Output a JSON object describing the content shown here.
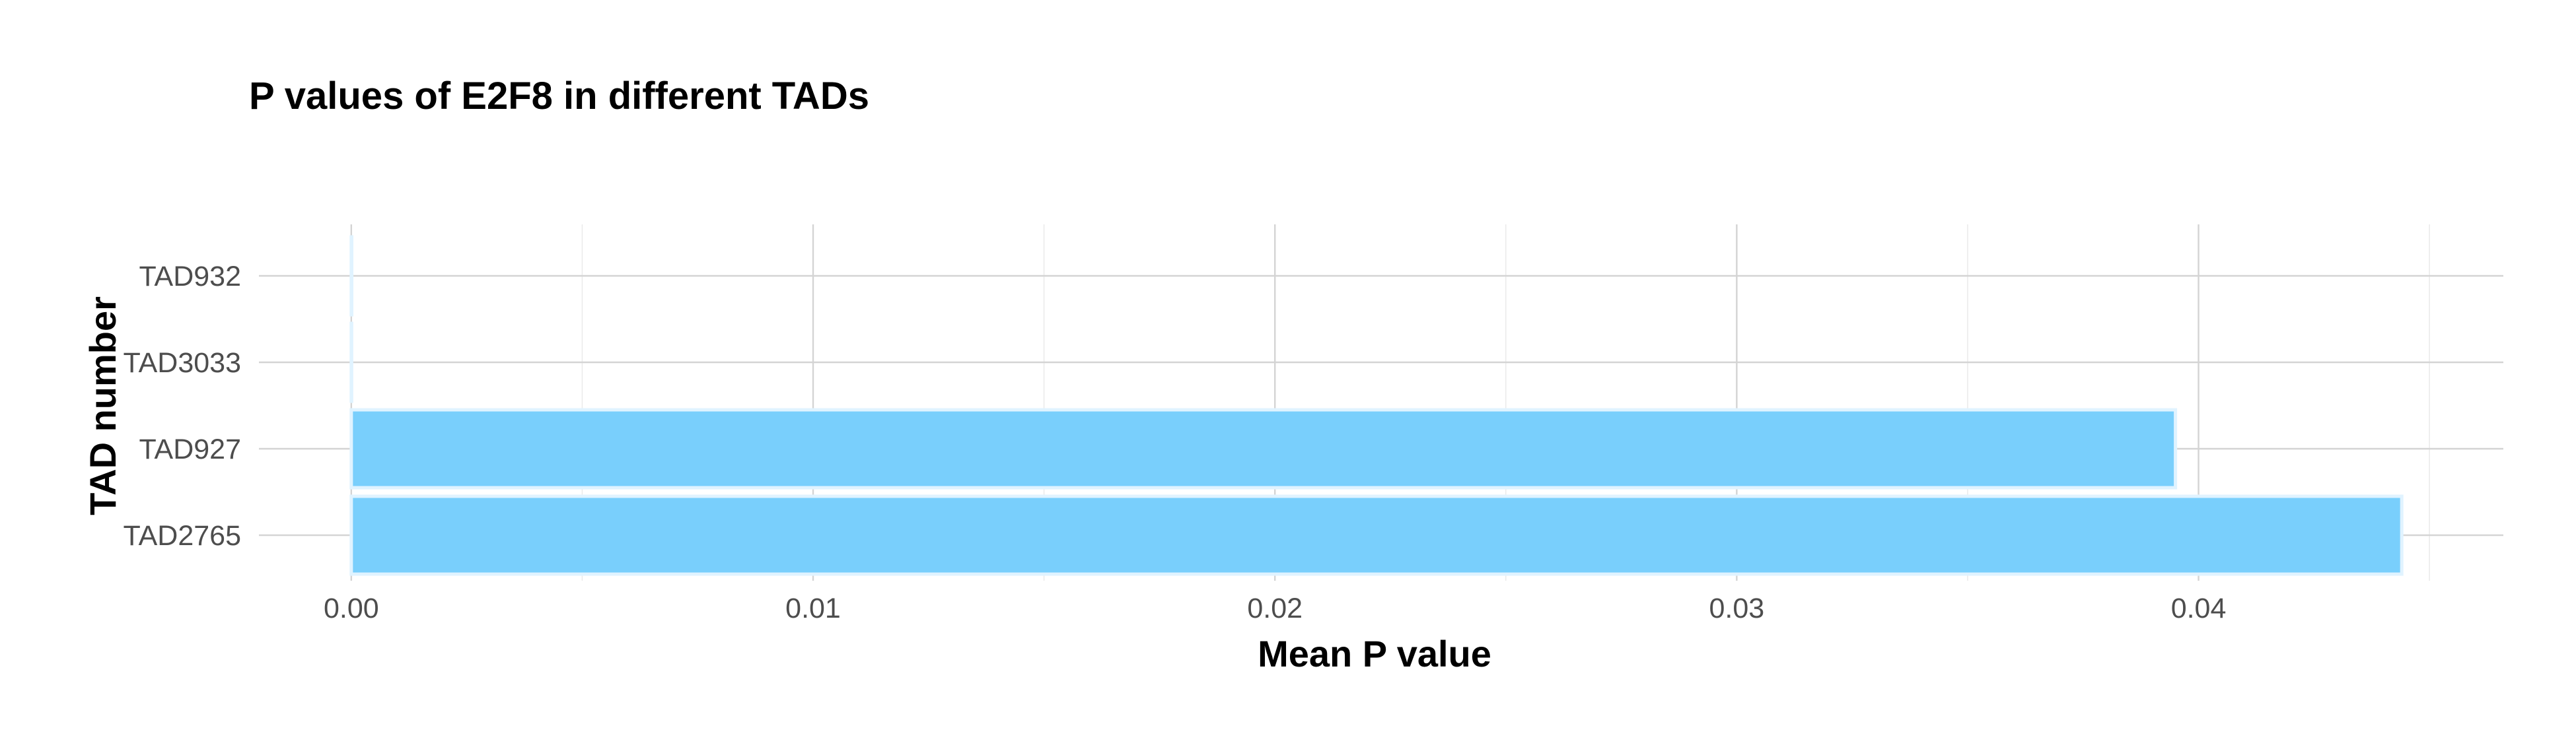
{
  "chart_data": {
    "type": "bar",
    "orientation": "horizontal",
    "title": "P values of E2F8 in different TADs",
    "xlabel": "Mean P value",
    "ylabel": "TAD number",
    "categories": [
      "TAD932",
      "TAD3033",
      "TAD927",
      "TAD2765"
    ],
    "values": [
      1e-05,
      0.0,
      0.0395,
      0.0444
    ],
    "xlim": [
      -0.002,
      0.0466
    ],
    "x_ticks": [
      0.0,
      0.01,
      0.02,
      0.03,
      0.04
    ],
    "x_tick_labels": [
      "0.00",
      "0.01",
      "0.02",
      "0.03",
      "0.04"
    ],
    "grid": true,
    "legend": "none",
    "bar_color": "#79cffc"
  }
}
